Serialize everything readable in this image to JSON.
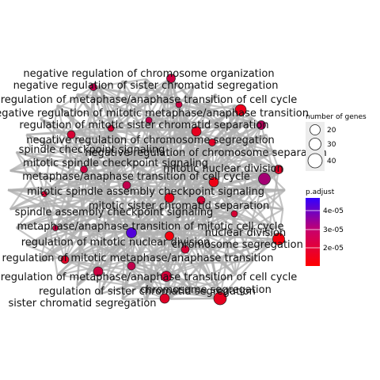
{
  "chart_data": {
    "type": "network",
    "edge_color": "#b0b0b0",
    "node_outline": "#222222",
    "labels": [
      "negative regulation of chromosome organization",
      "negative regulation of sister chromatid segregation",
      "regulation of metaphase/anaphase transition of cell cycle",
      "negative regulation of mitotic metaphase/anaphase transition",
      "regulation of mitotic sister chromatid separation",
      "negative regulation of chromosome segregation",
      "spindle checkpoint signaling",
      "negative regulation of chromosome separation",
      "mitotic spindle checkpoint signaling",
      "mitotic nuclear division",
      "metaphase/anaphase transition of cell cycle",
      "mitotic spindle assembly checkpoint signaling",
      "mitotic sister chromatid separation",
      "spindle assembly checkpoint signaling",
      "metaphase/anaphase transition of mitotic cell cycle",
      "nuclear division",
      "regulation of mitotic nuclear division",
      "chromosome segregation",
      "regulation of mitotic metaphase/anaphase transition",
      "regulation of metaphase/anaphase transition of cell cycle",
      "regulation of sister chromatid segregation",
      "chromosome segregation",
      "sister chromatid segregation"
    ],
    "legend_size": {
      "title": "number of genes",
      "values": [
        20,
        30,
        40
      ]
    },
    "legend_color": {
      "title": "p.adjust",
      "ticks": [
        "4e-05",
        "3e-05",
        "2e-05"
      ],
      "low_color": "#ff0000",
      "high_color": "#0000ff"
    }
  }
}
